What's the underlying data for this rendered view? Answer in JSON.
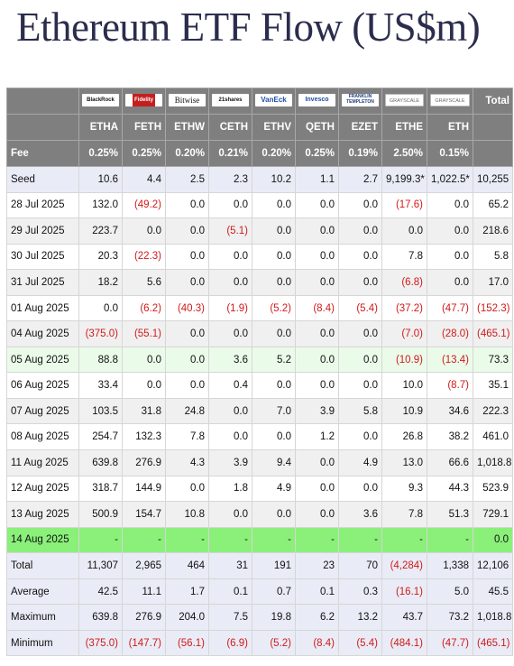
{
  "title": "Ethereum ETF Flow (US$m)",
  "colors": {
    "header_bg": "#7f7f7f",
    "negative": "#d11a1a",
    "summary_bg": "#e9ecf6",
    "highlight_green": "#8af07a",
    "pale_green": "#ebfbea"
  },
  "logos": [
    {
      "name": "blackrock-logo",
      "text": "BlackRock"
    },
    {
      "name": "fidelity-logo",
      "text": "Fidelity"
    },
    {
      "name": "bitwise-logo",
      "text": "Bitwise"
    },
    {
      "name": "21shares-logo",
      "text": "21shares"
    },
    {
      "name": "vaneck-logo",
      "text": "VanEck"
    },
    {
      "name": "invesco-logo",
      "text": "Invesco"
    },
    {
      "name": "franklin-templeton-logo",
      "text": "FRANKLIN TEMPLETON"
    },
    {
      "name": "grayscale-logo",
      "text": "GRAYSCALE"
    },
    {
      "name": "grayscale-mini-logo",
      "text": "GRAYSCALE"
    }
  ],
  "total_header": "Total",
  "tickers": [
    "ETHA",
    "FETH",
    "ETHW",
    "CETH",
    "ETHV",
    "QETH",
    "EZET",
    "ETHE",
    "ETH"
  ],
  "fee_label": "Fee",
  "fees": [
    "0.25%",
    "0.25%",
    "0.20%",
    "0.21%",
    "0.20%",
    "0.25%",
    "0.19%",
    "2.50%",
    "0.15%"
  ],
  "rows": [
    {
      "label": "Seed",
      "style": "stripe-blue",
      "values": [
        "10.6",
        "4.4",
        "2.5",
        "2.3",
        "10.2",
        "1.1",
        "2.7",
        "9,199.3*",
        "1,022.5*",
        "10,255"
      ]
    },
    {
      "label": "28 Jul 2025",
      "style": "stripe-white",
      "values": [
        "132.0",
        "(49.2)",
        "0.0",
        "0.0",
        "0.0",
        "0.0",
        "0.0",
        "(17.6)",
        "0.0",
        "65.2"
      ]
    },
    {
      "label": "29 Jul 2025",
      "style": "stripe-grey",
      "values": [
        "223.7",
        "0.0",
        "0.0",
        "(5.1)",
        "0.0",
        "0.0",
        "0.0",
        "0.0",
        "0.0",
        "218.6"
      ]
    },
    {
      "label": "30 Jul 2025",
      "style": "stripe-white",
      "values": [
        "20.3",
        "(22.3)",
        "0.0",
        "0.0",
        "0.0",
        "0.0",
        "0.0",
        "7.8",
        "0.0",
        "5.8"
      ]
    },
    {
      "label": "31 Jul 2025",
      "style": "stripe-grey",
      "values": [
        "18.2",
        "5.6",
        "0.0",
        "0.0",
        "0.0",
        "0.0",
        "0.0",
        "(6.8)",
        "0.0",
        "17.0"
      ]
    },
    {
      "label": "01 Aug 2025",
      "style": "stripe-white",
      "values": [
        "0.0",
        "(6.2)",
        "(40.3)",
        "(1.9)",
        "(5.2)",
        "(8.4)",
        "(5.4)",
        "(37.2)",
        "(47.7)",
        "(152.3)"
      ]
    },
    {
      "label": "04 Aug 2025",
      "style": "stripe-grey",
      "values": [
        "(375.0)",
        "(55.1)",
        "0.0",
        "0.0",
        "0.0",
        "0.0",
        "0.0",
        "(7.0)",
        "(28.0)",
        "(465.1)"
      ]
    },
    {
      "label": "05 Aug 2025",
      "style": "stripe-green",
      "values": [
        "88.8",
        "0.0",
        "0.0",
        "3.6",
        "5.2",
        "0.0",
        "0.0",
        "(10.9)",
        "(13.4)",
        "73.3"
      ]
    },
    {
      "label": "06 Aug 2025",
      "style": "stripe-white",
      "values": [
        "33.4",
        "0.0",
        "0.0",
        "0.4",
        "0.0",
        "0.0",
        "0.0",
        "10.0",
        "(8.7)",
        "35.1"
      ]
    },
    {
      "label": "07 Aug 2025",
      "style": "stripe-grey",
      "values": [
        "103.5",
        "31.8",
        "24.8",
        "0.0",
        "7.0",
        "3.9",
        "5.8",
        "10.9",
        "34.6",
        "222.3"
      ]
    },
    {
      "label": "08 Aug 2025",
      "style": "stripe-white",
      "values": [
        "254.7",
        "132.3",
        "7.8",
        "0.0",
        "0.0",
        "1.2",
        "0.0",
        "26.8",
        "38.2",
        "461.0"
      ]
    },
    {
      "label": "11 Aug 2025",
      "style": "stripe-grey",
      "values": [
        "639.8",
        "276.9",
        "4.3",
        "3.9",
        "9.4",
        "0.0",
        "4.9",
        "13.0",
        "66.6",
        "1,018.8"
      ]
    },
    {
      "label": "12 Aug 2025",
      "style": "stripe-white",
      "values": [
        "318.7",
        "144.9",
        "0.0",
        "1.8",
        "4.9",
        "0.0",
        "0.0",
        "9.3",
        "44.3",
        "523.9"
      ]
    },
    {
      "label": "13 Aug 2025",
      "style": "stripe-grey",
      "values": [
        "500.9",
        "154.7",
        "10.8",
        "0.0",
        "0.0",
        "0.0",
        "3.6",
        "7.8",
        "51.3",
        "729.1"
      ]
    },
    {
      "label": "14 Aug 2025",
      "style": "stripe-bright",
      "values": [
        "-",
        "-",
        "-",
        "-",
        "-",
        "-",
        "-",
        "-",
        "-",
        "0.0"
      ]
    },
    {
      "label": "Total",
      "style": "stripe-blue",
      "values": [
        "11,307",
        "2,965",
        "464",
        "31",
        "191",
        "23",
        "70",
        "(4,284)",
        "1,338",
        "12,106"
      ]
    },
    {
      "label": "Average",
      "style": "stripe-blue",
      "values": [
        "42.5",
        "11.1",
        "1.7",
        "0.1",
        "0.7",
        "0.1",
        "0.3",
        "(16.1)",
        "5.0",
        "45.5"
      ]
    },
    {
      "label": "Maximum",
      "style": "stripe-blue",
      "values": [
        "639.8",
        "276.9",
        "204.0",
        "7.5",
        "19.8",
        "6.2",
        "13.2",
        "43.7",
        "73.2",
        "1,018.8"
      ]
    },
    {
      "label": "Minimum",
      "style": "stripe-blue",
      "values": [
        "(375.0)",
        "(147.7)",
        "(56.1)",
        "(6.9)",
        "(5.2)",
        "(8.4)",
        "(5.4)",
        "(484.1)",
        "(47.7)",
        "(465.1)"
      ]
    }
  ]
}
